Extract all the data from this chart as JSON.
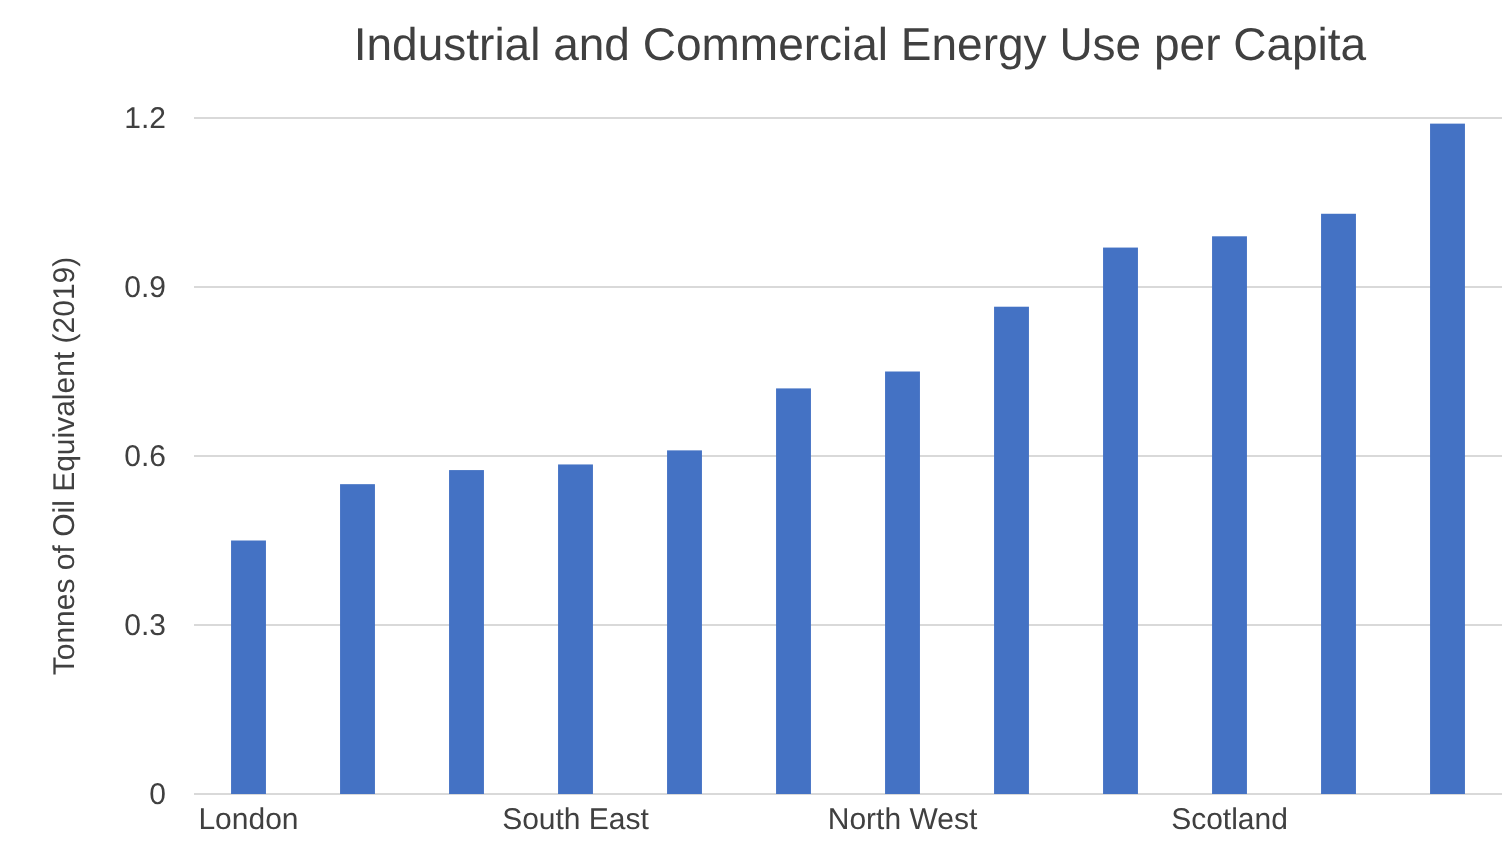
{
  "chart_data": {
    "type": "bar",
    "title": "Industrial and Commercial Energy Use per Capita",
    "ylabel": "Tonnes of Oil Equivalent (2019)",
    "categories": [
      "London",
      null,
      null,
      "South East",
      null,
      null,
      "North West",
      null,
      null,
      "Scotland",
      null,
      null
    ],
    "values": [
      0.45,
      0.55,
      0.575,
      0.585,
      0.61,
      0.72,
      0.75,
      0.865,
      0.97,
      0.99,
      1.03,
      1.19
    ],
    "color": "#4472c4",
    "ylim": [
      0,
      1.2
    ],
    "yticks": [
      0,
      0.3,
      0.6,
      0.9,
      1.2
    ],
    "grid": "y"
  }
}
